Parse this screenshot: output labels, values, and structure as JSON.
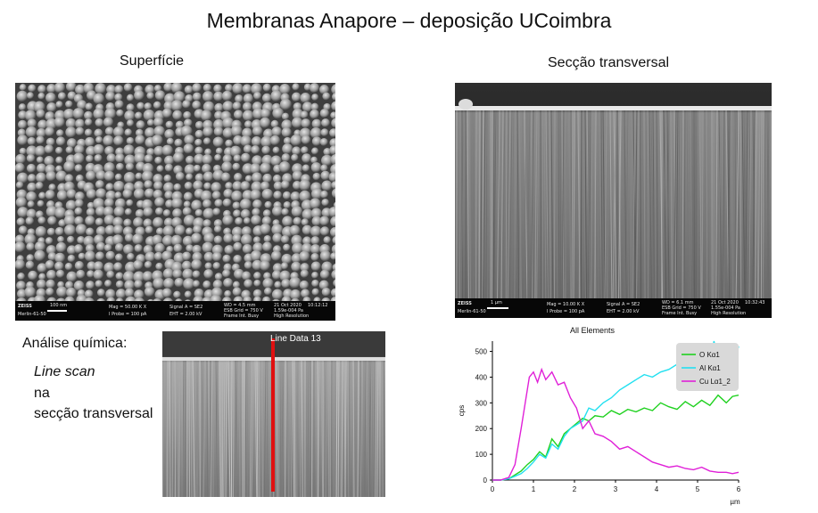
{
  "slide": {
    "title": "Membranas Anapore – deposição UCoimbra",
    "label_surface": "Superfície",
    "label_section": "Secção transversal",
    "label_analysis": "Análise química:",
    "label_linescan": "Line scan",
    "label_na": "na",
    "label_section2": "secção transversal"
  },
  "sem_surface": {
    "logo": "ZEISS",
    "scale": "100 nm",
    "mag": "Mag = 50.00 K X",
    "probe": "I Probe = 100 pA",
    "signal": "Signal A = SE2",
    "eht": "EHT = 2.00 kV",
    "wd": "WD = 4.5 mm",
    "esb": "ESB Grid = 750 V",
    "frame": "Frame Int. Busy",
    "date": "21 Oct 2020",
    "time": "10:12:12",
    "vac": "1.59e-004 Pa",
    "mode": "High Resolution",
    "instrument": "Merlin-61-50"
  },
  "sem_section": {
    "logo": "ZEISS",
    "scale": "1 µm",
    "mag": "Mag = 10.00 K X",
    "probe": "I Probe = 100 pA",
    "signal": "Signal A = SE2",
    "eht": "EHT = 2.00 kV",
    "wd": "WD = 6.1 mm",
    "esb": "ESB Grid = 750 V",
    "frame": "Frame Int. Busy",
    "date": "21 Oct 2020",
    "time": "10:32:43",
    "vac": "1.55e-004 Pa",
    "mode": "High Resolution",
    "instrument": "Merlin-61-50"
  },
  "linescan_image": {
    "label": "Line Data 13",
    "line_color": "#e01010"
  },
  "chart_data": {
    "type": "line",
    "title": "All Elements",
    "xlabel": "µm",
    "ylabel": "cps",
    "xlim": [
      0,
      6
    ],
    "ylim": [
      0,
      540
    ],
    "xticks": [
      0,
      1,
      2,
      3,
      4,
      5,
      6
    ],
    "yticks": [
      0,
      100,
      200,
      300,
      400,
      500
    ],
    "legend_position": "top-right",
    "series": [
      {
        "name": "O Kα1",
        "color": "#1fd11f",
        "x": [
          0,
          0.2,
          0.4,
          0.55,
          0.7,
          0.85,
          1.0,
          1.15,
          1.3,
          1.45,
          1.6,
          1.75,
          1.9,
          2.05,
          2.2,
          2.35,
          2.5,
          2.7,
          2.9,
          3.1,
          3.3,
          3.5,
          3.7,
          3.9,
          4.1,
          4.3,
          4.5,
          4.7,
          4.9,
          5.1,
          5.3,
          5.5,
          5.7,
          5.85,
          6.0
        ],
        "y": [
          0,
          0,
          5,
          20,
          35,
          60,
          80,
          110,
          90,
          160,
          130,
          180,
          200,
          220,
          240,
          230,
          250,
          245,
          270,
          255,
          275,
          265,
          280,
          270,
          300,
          285,
          275,
          305,
          285,
          310,
          290,
          330,
          300,
          325,
          330
        ]
      },
      {
        "name": "Al Kα1",
        "color": "#22e0f0",
        "x": [
          0,
          0.2,
          0.4,
          0.55,
          0.7,
          0.85,
          1.0,
          1.15,
          1.3,
          1.45,
          1.6,
          1.75,
          1.9,
          2.05,
          2.2,
          2.35,
          2.5,
          2.7,
          2.9,
          3.1,
          3.3,
          3.5,
          3.7,
          3.9,
          4.1,
          4.3,
          4.5,
          4.7,
          4.9,
          5.1,
          5.3,
          5.4,
          5.5,
          5.6,
          5.75,
          5.9,
          6.0
        ],
        "y": [
          0,
          0,
          5,
          15,
          25,
          45,
          70,
          100,
          85,
          140,
          120,
          170,
          200,
          215,
          230,
          280,
          270,
          300,
          320,
          350,
          370,
          390,
          410,
          400,
          420,
          430,
          450,
          440,
          460,
          490,
          460,
          540,
          470,
          500,
          480,
          460,
          520
        ]
      },
      {
        "name": "Cu Lα1_2",
        "color": "#e020d8",
        "x": [
          0,
          0.2,
          0.4,
          0.55,
          0.7,
          0.8,
          0.9,
          1.0,
          1.1,
          1.2,
          1.3,
          1.45,
          1.6,
          1.75,
          1.9,
          2.05,
          2.2,
          2.35,
          2.5,
          2.7,
          2.9,
          3.1,
          3.3,
          3.5,
          3.7,
          3.9,
          4.1,
          4.3,
          4.5,
          4.7,
          4.9,
          5.1,
          5.3,
          5.5,
          5.7,
          5.85,
          6.0
        ],
        "y": [
          0,
          0,
          10,
          60,
          200,
          300,
          400,
          420,
          380,
          430,
          390,
          420,
          370,
          380,
          320,
          280,
          200,
          230,
          180,
          170,
          150,
          120,
          130,
          110,
          90,
          70,
          60,
          50,
          55,
          45,
          40,
          50,
          35,
          30,
          30,
          25,
          30
        ]
      }
    ]
  }
}
